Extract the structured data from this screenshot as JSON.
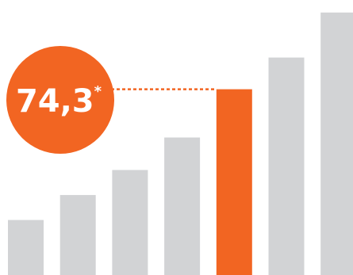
{
  "chart_data": {
    "type": "bar",
    "categories": [
      "",
      "",
      "",
      "",
      "",
      "",
      ""
    ],
    "values": [
      22,
      32,
      42,
      55,
      74.3,
      87,
      105
    ],
    "highlight_index": 4,
    "ylim": [
      0,
      110
    ],
    "grid": false,
    "legend": "none",
    "callout": {
      "value": "74,3",
      "marker": "*"
    },
    "colors": {
      "bar": "#d2d3d5",
      "highlight": "#f26522",
      "callout_text": "#ffffff"
    }
  }
}
